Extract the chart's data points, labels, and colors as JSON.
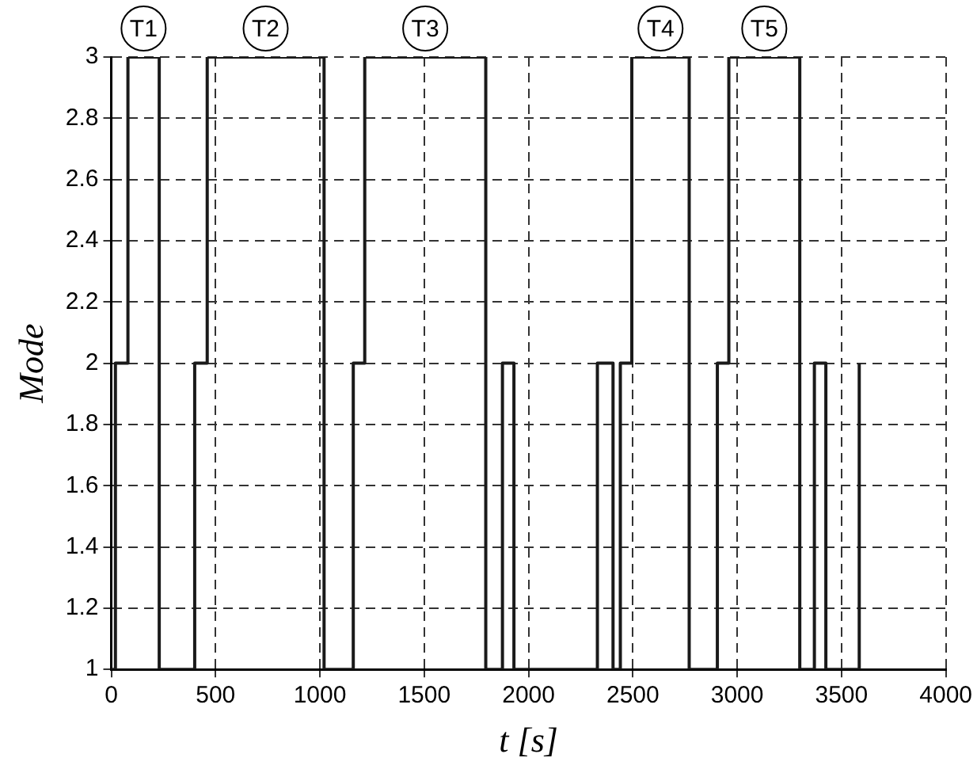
{
  "chart_data": {
    "type": "step",
    "xlabel": "t [s]",
    "ylabel": "Mode",
    "series": [
      {
        "color": "#1a1a1a",
        "x": [
          0,
          20,
          80,
          230,
          400,
          460,
          1020,
          1160,
          1215,
          1795,
          1875,
          1930,
          2330,
          2405,
          2440,
          2495,
          2770,
          2905,
          2960,
          3300,
          3370,
          3425,
          3585
        ],
        "values": [
          1,
          2,
          3,
          1,
          2,
          3,
          1,
          2,
          3,
          1,
          2,
          1,
          2,
          1,
          2,
          3,
          1,
          2,
          3,
          1,
          2,
          1,
          2
        ]
      }
    ],
    "xlim": [
      0,
      4000
    ],
    "xticks": [
      0,
      500,
      1000,
      1500,
      2000,
      2500,
      3000,
      3500,
      4000
    ],
    "ylim": [
      1,
      3
    ],
    "yticks": [
      1,
      1.2,
      1.4,
      1.6,
      1.8,
      2,
      2.2,
      2.4,
      2.6,
      2.8,
      3
    ],
    "grid": true,
    "legend": false,
    "marker": "none",
    "line_style": "solid",
    "annotations": [
      "T1",
      "T2",
      "T3",
      "T4",
      "T5"
    ]
  }
}
